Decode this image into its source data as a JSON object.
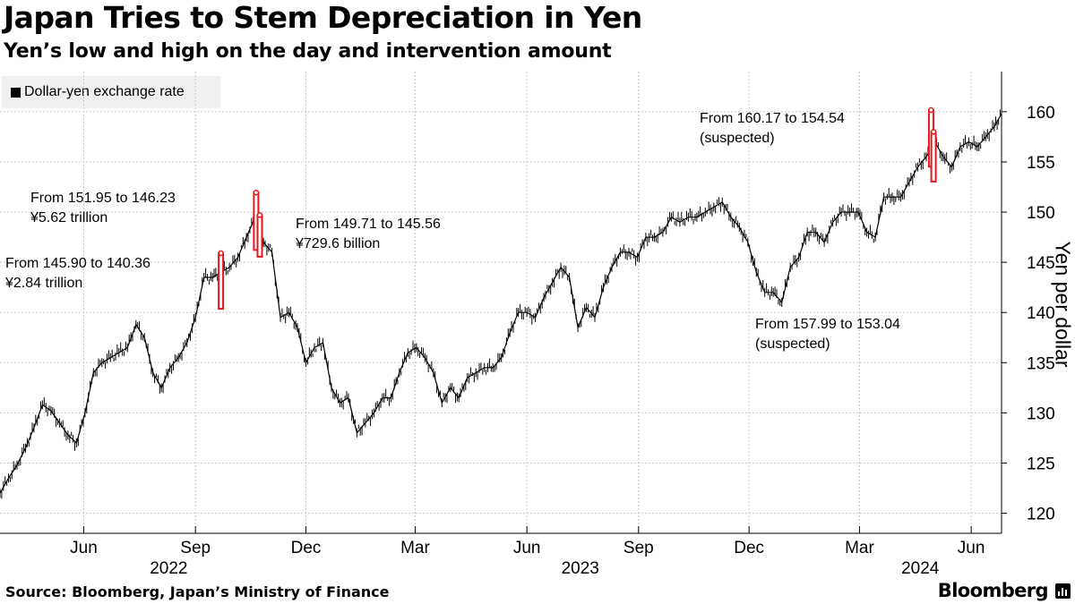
{
  "title": "Japan Tries to Stem Depreciation in Yen",
  "subtitle": "Yen’s low and high on the day and intervention amount",
  "legend": {
    "label": "Dollar-yen exchange rate",
    "color": "#000000"
  },
  "source": "Source: Bloomberg, Japan’s Ministry of Finance",
  "brand": "Bloomberg",
  "chart_data": {
    "type": "line",
    "ylabel": "Yen per dollar",
    "ylim": [
      118,
      164
    ],
    "yticks": [
      120,
      125,
      130,
      135,
      140,
      145,
      150,
      155,
      160
    ],
    "y_axis_side": "right",
    "grid": true,
    "legend_position": "top-left",
    "xlim": [
      "2022-03-24",
      "2024-06-26"
    ],
    "month_ticks": [
      {
        "date": "2022-06-01",
        "label": "Jun"
      },
      {
        "date": "2022-09-01",
        "label": "Sep"
      },
      {
        "date": "2022-12-01",
        "label": "Dec"
      },
      {
        "date": "2023-03-01",
        "label": "Mar"
      },
      {
        "date": "2023-06-01",
        "label": "Jun"
      },
      {
        "date": "2023-09-01",
        "label": "Sep"
      },
      {
        "date": "2023-12-01",
        "label": "Dec"
      },
      {
        "date": "2024-03-01",
        "label": "Mar"
      },
      {
        "date": "2024-06-01",
        "label": "Jun"
      }
    ],
    "year_labels": [
      {
        "date": "2022-08-10",
        "label": "2022"
      },
      {
        "date": "2023-07-15",
        "label": "2023"
      },
      {
        "date": "2024-04-20",
        "label": "2024"
      }
    ],
    "series": [
      {
        "name": "Dollar-yen exchange rate",
        "color": "#000000",
        "x": [
          "2022-03-24",
          "2022-03-31",
          "2022-04-07",
          "2022-04-14",
          "2022-04-21",
          "2022-04-28",
          "2022-05-05",
          "2022-05-12",
          "2022-05-19",
          "2022-05-26",
          "2022-06-02",
          "2022-06-09",
          "2022-06-16",
          "2022-06-23",
          "2022-06-30",
          "2022-07-07",
          "2022-07-14",
          "2022-07-21",
          "2022-07-28",
          "2022-08-04",
          "2022-08-11",
          "2022-08-18",
          "2022-08-25",
          "2022-09-01",
          "2022-09-08",
          "2022-09-15",
          "2022-09-22",
          "2022-09-29",
          "2022-10-06",
          "2022-10-13",
          "2022-10-20",
          "2022-10-27",
          "2022-11-03",
          "2022-11-10",
          "2022-11-17",
          "2022-11-24",
          "2022-12-01",
          "2022-12-08",
          "2022-12-15",
          "2022-12-22",
          "2022-12-29",
          "2023-01-05",
          "2023-01-12",
          "2023-01-19",
          "2023-01-26",
          "2023-02-02",
          "2023-02-09",
          "2023-02-16",
          "2023-02-23",
          "2023-03-02",
          "2023-03-09",
          "2023-03-16",
          "2023-03-23",
          "2023-03-30",
          "2023-04-06",
          "2023-04-13",
          "2023-04-20",
          "2023-04-27",
          "2023-05-04",
          "2023-05-11",
          "2023-05-18",
          "2023-05-25",
          "2023-06-01",
          "2023-06-08",
          "2023-06-15",
          "2023-06-22",
          "2023-06-29",
          "2023-07-06",
          "2023-07-13",
          "2023-07-20",
          "2023-07-27",
          "2023-08-03",
          "2023-08-10",
          "2023-08-17",
          "2023-08-24",
          "2023-08-31",
          "2023-09-07",
          "2023-09-14",
          "2023-09-21",
          "2023-09-28",
          "2023-10-05",
          "2023-10-12",
          "2023-10-19",
          "2023-10-26",
          "2023-11-02",
          "2023-11-09",
          "2023-11-16",
          "2023-11-23",
          "2023-11-30",
          "2023-12-07",
          "2023-12-14",
          "2023-12-21",
          "2023-12-28",
          "2024-01-04",
          "2024-01-11",
          "2024-01-18",
          "2024-01-25",
          "2024-02-01",
          "2024-02-08",
          "2024-02-15",
          "2024-02-22",
          "2024-02-29",
          "2024-03-07",
          "2024-03-14",
          "2024-03-21",
          "2024-03-28",
          "2024-04-04",
          "2024-04-11",
          "2024-04-18",
          "2024-04-25",
          "2024-05-02",
          "2024-05-09",
          "2024-05-16",
          "2024-05-23",
          "2024-05-30",
          "2024-06-06",
          "2024-06-13",
          "2024-06-20",
          "2024-06-26"
        ],
        "y": [
          122.0,
          123.5,
          124.8,
          126.5,
          128.5,
          130.8,
          130.2,
          129.0,
          127.8,
          127.0,
          130.0,
          134.0,
          135.0,
          135.5,
          136.0,
          136.5,
          138.8,
          137.5,
          134.0,
          132.5,
          134.5,
          135.5,
          137.0,
          139.5,
          143.5,
          143.5,
          144.0,
          144.5,
          145.5,
          147.5,
          149.5,
          147.0,
          146.0,
          139.5,
          140.0,
          138.5,
          135.0,
          136.5,
          137.0,
          132.5,
          131.0,
          131.5,
          128.0,
          129.0,
          130.0,
          131.5,
          131.5,
          134.0,
          136.0,
          136.5,
          135.5,
          134.0,
          131.0,
          132.5,
          131.5,
          133.5,
          134.0,
          134.5,
          134.5,
          135.5,
          138.0,
          140.0,
          140.0,
          139.5,
          141.5,
          143.0,
          144.5,
          143.5,
          138.5,
          140.5,
          139.5,
          142.5,
          144.5,
          146.0,
          146.0,
          145.5,
          147.5,
          147.5,
          148.0,
          149.5,
          149.0,
          149.5,
          149.5,
          150.0,
          150.5,
          151.0,
          149.5,
          148.5,
          147.0,
          144.0,
          142.0,
          142.0,
          141.0,
          144.5,
          145.5,
          148.0,
          148.0,
          147.0,
          149.0,
          150.0,
          150.0,
          150.0,
          148.0,
          147.5,
          151.5,
          151.5,
          151.5,
          153.0,
          154.5,
          155.5,
          157.0,
          155.5,
          154.5,
          156.5,
          157.0,
          156.5,
          157.5,
          158.5,
          159.8
        ]
      }
    ],
    "interventions": [
      {
        "date": "2022-09-22",
        "high": 145.9,
        "low": 140.36
      },
      {
        "date": "2022-10-21",
        "high": 151.95,
        "low": 146.23
      },
      {
        "date": "2022-10-24",
        "high": 149.71,
        "low": 145.56
      },
      {
        "date": "2024-04-29",
        "high": 160.17,
        "low": 154.54
      },
      {
        "date": "2024-05-01",
        "high": 157.99,
        "low": 153.04
      }
    ],
    "intervention_color": "#e8161c",
    "annotations": [
      {
        "lines": [
          "From 145.90 to 140.36",
          "¥2.84 trillion"
        ]
      },
      {
        "lines": [
          "From 151.95 to 146.23",
          "¥5.62 trillion"
        ]
      },
      {
        "lines": [
          "From 149.71 to 145.56",
          "¥729.6 billion"
        ]
      },
      {
        "lines": [
          "From 160.17 to 154.54",
          "(suspected)"
        ]
      },
      {
        "lines": [
          "From 157.99 to 153.04",
          "(suspected)"
        ]
      }
    ]
  }
}
